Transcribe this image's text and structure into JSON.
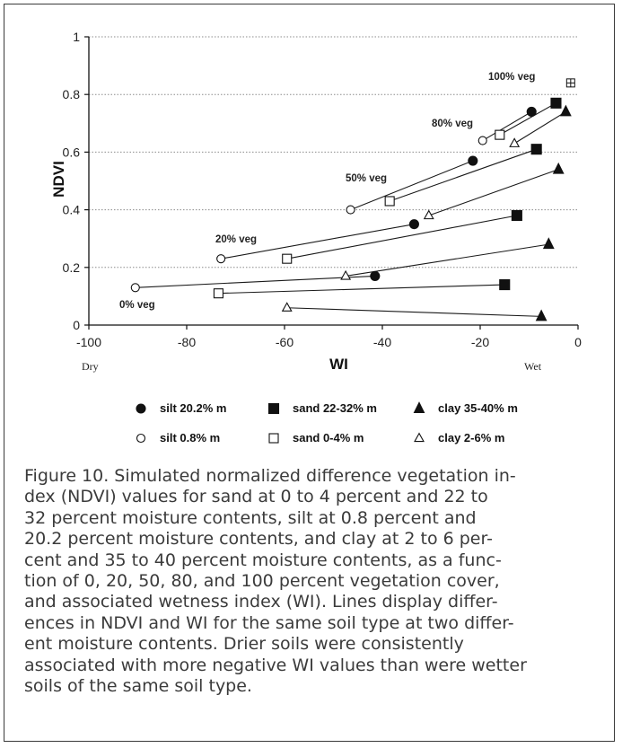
{
  "chart_data": {
    "type": "scatter",
    "xlabel": "WI",
    "ylabel": "NDVI",
    "xlim": [
      -100,
      0
    ],
    "ylim": [
      0,
      1
    ],
    "x_ticks": [
      "-100",
      "-80",
      "-60",
      "-40",
      "-20",
      "0"
    ],
    "y_ticks": [
      "0",
      "0.2",
      "0.4",
      "0.6",
      "0.8",
      "1"
    ],
    "x_end_labels": {
      "left": "Dry",
      "right": "Wet"
    },
    "grid": "horizontal dotted",
    "annotations": [
      "0% veg",
      "20% veg",
      "50% veg",
      "80% veg",
      "100% veg"
    ],
    "series": [
      {
        "name": "silt 20.2% m",
        "marker": "filled-circle",
        "points": [
          [
            -41.5,
            0.17
          ],
          [
            -33.5,
            0.35
          ],
          [
            -21.5,
            0.57
          ],
          [
            -9.5,
            0.74
          ]
        ]
      },
      {
        "name": "sand 22-32% m",
        "marker": "filled-square",
        "points": [
          [
            -15,
            0.14
          ],
          [
            -12.5,
            0.38
          ],
          [
            -8.5,
            0.61
          ],
          [
            -4.5,
            0.77
          ]
        ]
      },
      {
        "name": "clay 35-40% m",
        "marker": "filled-triangle",
        "points": [
          [
            -7.5,
            0.03
          ],
          [
            -6,
            0.28
          ],
          [
            -4,
            0.54
          ],
          [
            -2.5,
            0.74
          ]
        ]
      },
      {
        "name": "silt 0.8% m",
        "marker": "open-circle",
        "points": [
          [
            -90.5,
            0.13
          ],
          [
            -73,
            0.23
          ],
          [
            -46.5,
            0.4
          ],
          [
            -19.5,
            0.64
          ]
        ]
      },
      {
        "name": "sand 0-4% m",
        "marker": "open-square",
        "points": [
          [
            -73.5,
            0.11
          ],
          [
            -59.5,
            0.23
          ],
          [
            -38.5,
            0.43
          ],
          [
            -16,
            0.66
          ]
        ]
      },
      {
        "name": "clay 2-6% m",
        "marker": "open-triangle",
        "points": [
          [
            -59.5,
            0.06
          ],
          [
            -47.5,
            0.17
          ],
          [
            -30.5,
            0.38
          ],
          [
            -13,
            0.63
          ]
        ]
      }
    ],
    "extra_points": [
      {
        "label": "100% veg",
        "marker": "square-cross",
        "x": -1.5,
        "y": 0.84
      }
    ],
    "lines": [
      [
        [
          -90.5,
          0.13
        ],
        [
          -41.5,
          0.17
        ]
      ],
      [
        [
          -73.5,
          0.11
        ],
        [
          -15,
          0.14
        ]
      ],
      [
        [
          -59.5,
          0.06
        ],
        [
          -7.5,
          0.03
        ]
      ],
      [
        [
          -73,
          0.23
        ],
        [
          -33.5,
          0.35
        ]
      ],
      [
        [
          -59.5,
          0.23
        ],
        [
          -12.5,
          0.38
        ]
      ],
      [
        [
          -47.5,
          0.17
        ],
        [
          -6,
          0.28
        ]
      ],
      [
        [
          -46.5,
          0.4
        ],
        [
          -21.5,
          0.57
        ]
      ],
      [
        [
          -38.5,
          0.43
        ],
        [
          -8.5,
          0.61
        ]
      ],
      [
        [
          -30.5,
          0.38
        ],
        [
          -4,
          0.54
        ]
      ],
      [
        [
          -19.5,
          0.64
        ],
        [
          -9.5,
          0.74
        ]
      ],
      [
        [
          -16,
          0.66
        ],
        [
          -4.5,
          0.77
        ]
      ],
      [
        [
          -13,
          0.63
        ],
        [
          -2.5,
          0.74
        ]
      ]
    ]
  },
  "caption": [
    "Figure 10. Simulated normalized difference vegetation in-",
    "dex (NDVI) values for sand at 0 to 4 percent and 22 to",
    "32 percent moisture contents, silt at 0.8 percent and",
    "20.2 percent moisture contents, and clay at 2 to 6 per-",
    "cent and 35 to 40 percent moisture contents, as a func-",
    "tion of 0, 20, 50, 80, and 100 percent vegetation cover,",
    "and associated wetness index (WI). Lines display differ-",
    "ences in NDVI and WI for the same soil type at two differ-",
    "ent moisture contents. Drier soils were consistently",
    "associated with more negative WI values than were wetter",
    "soils of the same soil type."
  ],
  "colors": {
    "ink": "#111111",
    "grid": "#8c8c8c",
    "caption": "#3b3b3b",
    "frame": "#3a3a3a"
  }
}
